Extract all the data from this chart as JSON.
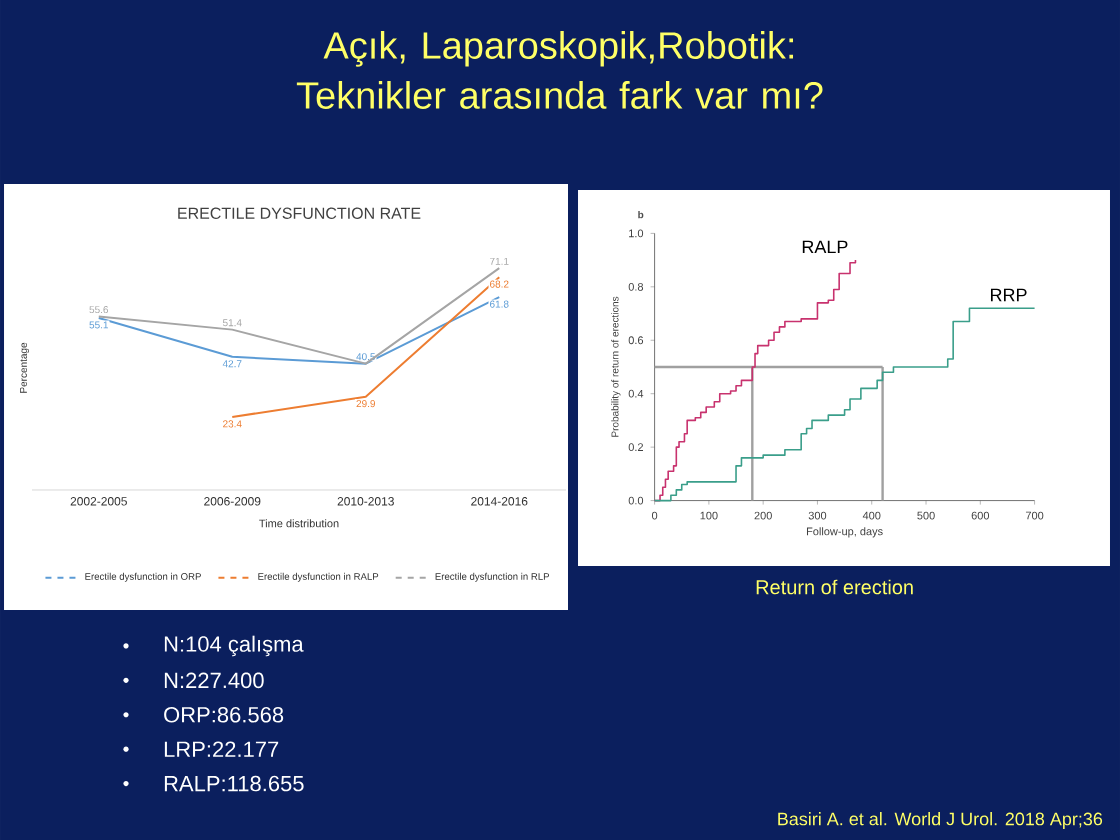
{
  "chart_data": [
    {
      "type": "line",
      "title": "ERECTILE DYSFUNCTION RATE",
      "xlabel": "Time distribution",
      "ylabel": "Percentage",
      "categories": [
        "2002-2005",
        "2006-2009",
        "2010-2013",
        "2014-2016"
      ],
      "legend": "bottom",
      "series": [
        {
          "name": "Erectile dysfunction in ORP",
          "color": "#5b9bd5",
          "values": [
            55.1,
            42.7,
            40.5,
            61.8
          ],
          "value_labels": [
            "55.1",
            "42.7",
            "40.5",
            "61.8"
          ]
        },
        {
          "name": "Erectile dysfunction in RALP",
          "color": "#ed7d31",
          "values": [
            null,
            23.4,
            29.9,
            68.2
          ],
          "value_labels": [
            null,
            "23.4",
            "29.9",
            "68.2"
          ]
        },
        {
          "name": "Erectile dysfunction in RLP",
          "color": "#a5a5a5",
          "values": [
            55.6,
            51.4,
            40.5,
            71.1
          ],
          "value_labels": [
            "55.6",
            "51.4",
            null,
            "71.1"
          ]
        }
      ]
    },
    {
      "type": "step",
      "xlabel": "Follow-up, days",
      "ylabel": "Probability of return of erections",
      "xlim": [
        0,
        700
      ],
      "xticks": [
        0,
        100,
        200,
        300,
        400,
        500,
        600,
        700
      ],
      "ylim": [
        0,
        1
      ],
      "yticks": [
        {
          "value": 0,
          "label": "0.0"
        },
        {
          "value": 0.2,
          "label": "0.2"
        },
        {
          "value": 0.4,
          "label": "0.4"
        },
        {
          "value": 0.6,
          "label": "0.6"
        },
        {
          "value": 0.8,
          "label": "0.8"
        },
        {
          "value": 1,
          "label": "1.0"
        }
      ],
      "annotations": [
        "b",
        "Return of erection"
      ],
      "ref_lines": [
        {
          "axis": "y",
          "value": 0.5,
          "color": "#a0a0a0"
        },
        {
          "axis": "x",
          "value": 180,
          "color": "#a0a0a0"
        },
        {
          "axis": "x",
          "value": 420,
          "color": "#a0a0a0"
        }
      ],
      "series": [
        {
          "name": "RALP",
          "color": "#c8326e",
          "x": [
            0,
            10,
            15,
            20,
            25,
            35,
            40,
            45,
            55,
            60,
            75,
            85,
            95,
            110,
            120,
            140,
            150,
            160,
            180,
            185,
            190,
            210,
            220,
            230,
            240,
            270,
            300,
            320,
            330,
            340,
            360,
            370
          ],
          "values": [
            0,
            0.02,
            0.05,
            0.08,
            0.11,
            0.13,
            0.2,
            0.22,
            0.25,
            0.3,
            0.31,
            0.33,
            0.35,
            0.37,
            0.4,
            0.41,
            0.43,
            0.45,
            0.5,
            0.55,
            0.58,
            0.6,
            0.63,
            0.65,
            0.67,
            0.68,
            0.74,
            0.75,
            0.79,
            0.85,
            0.89,
            0.9
          ]
        },
        {
          "name": "RRP",
          "color": "#3a9e8a",
          "x": [
            0,
            30,
            40,
            50,
            60,
            150,
            160,
            200,
            240,
            270,
            280,
            290,
            320,
            350,
            360,
            380,
            410,
            420,
            440,
            530,
            540,
            550,
            580,
            700
          ],
          "values": [
            0,
            0.02,
            0.04,
            0.06,
            0.07,
            0.13,
            0.16,
            0.17,
            0.19,
            0.25,
            0.27,
            0.3,
            0.32,
            0.34,
            0.38,
            0.42,
            0.45,
            0.48,
            0.5,
            0.5,
            0.53,
            0.67,
            0.72,
            0.72
          ]
        }
      ]
    },
    {
      "type": "other",
      "title": "Açık, Laparoskopik,Robotik: Teknikler arasında fark var mı?",
      "annotations": [
        "N:104 çalışma",
        "N:227.400",
        "ORP:86.568",
        "LRP:22.177",
        "RALP:118.655",
        "Basiri A. et al. World J Urol. 2018 Apr;36"
      ]
    }
  ]
}
